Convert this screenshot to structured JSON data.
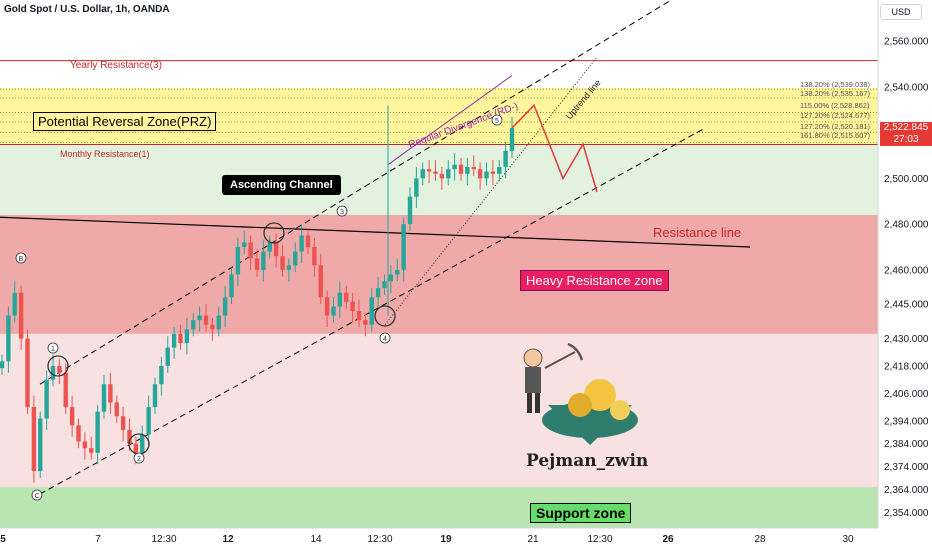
{
  "header": {
    "symbol": "Gold Spot / U.S. Dollar, 1h, OANDA",
    "currency": "USD"
  },
  "price_tag": {
    "price": "2,522.845",
    "countdown": "27:03"
  },
  "annotations": {
    "yearly_resistance": "Yearly Resistance(3)",
    "monthly_resistance": "Monthly Resistance(1)",
    "prz": "Potential Reversal Zone(PRZ)",
    "ascending_channel": "Ascending Channel",
    "regular_divergence": "Regular Divergence (RD-)",
    "uptrend_line": "Uptrend line",
    "resistance_line": "Resistance line",
    "heavy_resistance_zone": "Heavy Resistance zone",
    "support_zone": "Support zone",
    "watermark": "Pejman_zwin",
    "fib_levels": [
      "138.20% (2,539.038)",
      "138.20% (2,535.167)",
      "115.00% (2,528.862)",
      "127.20% (2,524.677)",
      "127.20% (2,520.181)",
      "161.80% (2,515.607)"
    ],
    "points": [
      "1",
      "2",
      "3",
      "4",
      "5",
      "B",
      "C"
    ]
  },
  "colors": {
    "bull": "#26a69a",
    "bear": "#ef5350",
    "heavy_zone": "#f0a9a9",
    "prz_zone": "#fff59d",
    "support_zone": "#b9e6b0",
    "upper_zone": "#e3f2df",
    "lower_zone": "#f7e1e1",
    "resistance_red": "#c62828"
  },
  "chart_data": {
    "type": "candlestick",
    "y_axis": {
      "range": [
        2348,
        2578
      ],
      "ticks": [
        "2,560.000",
        "2,540.000",
        "2,520.000",
        "2,500.000",
        "2,480.000",
        "2,460.000",
        "2,445.000",
        "2,430.000",
        "2,418.000",
        "2,406.000",
        "2,394.000",
        "2,384.000",
        "2,374.000",
        "2,364.000",
        "2,354.000"
      ]
    },
    "x_axis": {
      "ticks": [
        "5",
        "7",
        "12:30",
        "12",
        "14",
        "12:30",
        "19",
        "21",
        "12:30",
        "26",
        "28",
        "30"
      ]
    },
    "zones": [
      {
        "name": "Yearly Resistance(3)",
        "y": 2551.5
      },
      {
        "name": "Potential Reversal Zone(PRZ)",
        "y0": 2514.8,
        "y1": 2539.5
      },
      {
        "name": "Heavy Resistance zone",
        "y0": 2432,
        "y1": 2484
      },
      {
        "name": "Support zone",
        "y0": 2348,
        "y1": 2365
      }
    ],
    "series": [
      {
        "type": "close_path",
        "values": [
          2420,
          2440,
          2450,
          2430,
          2400,
          2372,
          2395,
          2412,
          2418,
          2415,
          2400,
          2392,
          2385,
          2382,
          2380,
          2398,
          2410,
          2402,
          2396,
          2390,
          2384,
          2380,
          2388,
          2400,
          2410,
          2418,
          2426,
          2432,
          2428,
          2434,
          2438,
          2440,
          2436,
          2434,
          2440,
          2448,
          2458,
          2470,
          2472,
          2465,
          2460,
          2468,
          2472,
          2466,
          2460,
          2462,
          2468,
          2475,
          2470,
          2462,
          2448,
          2440,
          2444,
          2450,
          2446,
          2442,
          2438,
          2436,
          2448,
          2452,
          2455,
          2458,
          2460,
          2480,
          2492,
          2500,
          2504,
          2503,
          2502,
          2500,
          2504,
          2506,
          2502,
          2505,
          2504,
          2500,
          2503,
          2502,
          2505,
          2512,
          2522
        ]
      }
    ]
  }
}
